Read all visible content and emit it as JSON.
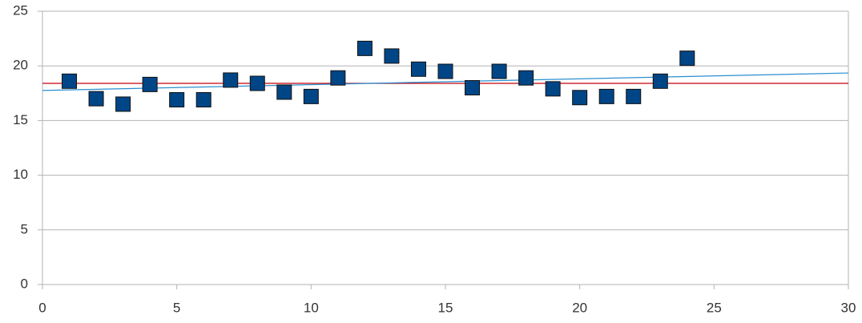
{
  "chart_data": {
    "type": "scatter",
    "x": [
      1,
      2,
      3,
      4,
      5,
      6,
      7,
      8,
      9,
      10,
      11,
      12,
      13,
      14,
      15,
      16,
      17,
      18,
      19,
      20,
      21,
      22,
      23,
      24
    ],
    "series": [
      {
        "color": "#004586",
        "values": [
          18.6,
          17.0,
          16.5,
          18.3,
          16.9,
          16.9,
          18.7,
          18.4,
          17.6,
          17.2,
          18.9,
          21.6,
          20.9,
          19.7,
          19.5,
          18.0,
          19.5,
          18.9,
          17.9,
          17.1,
          17.2,
          17.2,
          18.6,
          20.7
        ]
      }
    ],
    "lines": [
      {
        "color": "#c5000b",
        "x": [
          0,
          30
        ],
        "values": [
          18.4,
          18.4
        ]
      },
      {
        "color": "#2a8fd0",
        "x": [
          0,
          30
        ],
        "values": [
          17.75,
          19.35
        ]
      }
    ],
    "xlim": [
      0,
      30
    ],
    "xticks": [
      0,
      5,
      10,
      15,
      20,
      25,
      30
    ],
    "ylim": [
      0,
      25
    ],
    "yticks": [
      0,
      5,
      10,
      15,
      20,
      25
    ],
    "grid": true
  }
}
